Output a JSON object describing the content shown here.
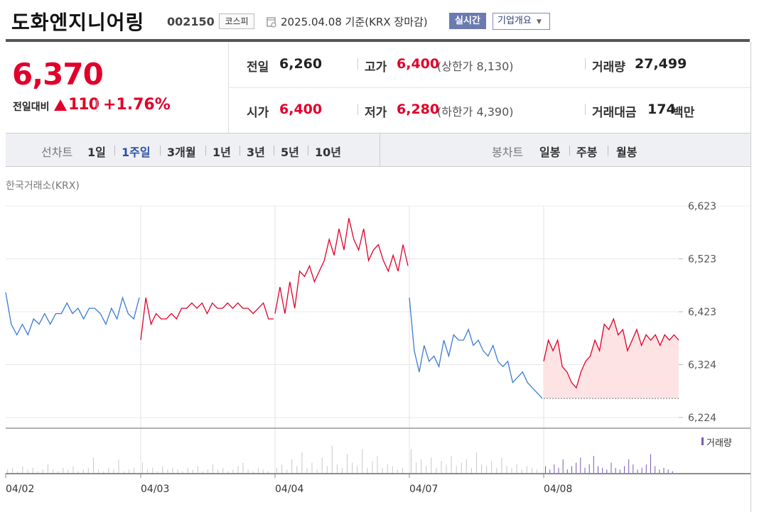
{
  "header": {
    "stock_name": "도화엔지니어링",
    "stock_code": "002150",
    "market": "코스피",
    "date_info": "2025.04.08  기준(KRX 장마감)",
    "realtime_label": "실시간",
    "company_overview_label": "기업개요"
  },
  "price": {
    "current": "6,370",
    "diff_label": "전일대비",
    "diff_value": "110",
    "diff_pct": "+1.76%",
    "prev_label": "전일",
    "prev_value": "6,260",
    "high_label": "고가",
    "high_value": "6,400",
    "upper_limit": "(상한가 8,130)",
    "volume_label": "거래량",
    "volume_value": "27,499",
    "open_label": "시가",
    "open_value": "6,400",
    "low_label": "저가",
    "low_value": "6,280",
    "lower_limit": "(하한가 4,390)",
    "amount_label": "거래대금",
    "amount_value": "174",
    "amount_unit": "백만"
  },
  "toolbar": {
    "line_chart_label": "선차트",
    "periods": [
      "1일",
      "1주일",
      "3개월",
      "1년",
      "3년",
      "5년",
      "10년"
    ],
    "selected_period": "1주일",
    "candle_label": "봉차트",
    "candle_periods": [
      "일봉",
      "주봉",
      "월봉"
    ]
  },
  "colors": {
    "up": "#e0002a",
    "down": "#3b7bd5",
    "volume": "#7a5ab5"
  },
  "chart_data": {
    "type": "line",
    "exchange": "한국거래소(KRX)",
    "y_ticks": [
      "6,623",
      "6,523",
      "6,423",
      "6,324",
      "6,224"
    ],
    "ylim": [
      6224,
      6623
    ],
    "x_labels": [
      "04/02",
      "04/03",
      "04/04",
      "04/07",
      "04/08"
    ],
    "volume_legend": "거래량",
    "baseline": 6260,
    "series": [
      {
        "day": "04/02",
        "trend": "down",
        "values": [
          6460,
          6400,
          6380,
          6400,
          6380,
          6410,
          6400,
          6420,
          6400,
          6420,
          6420,
          6440,
          6420,
          6430,
          6410,
          6430,
          6430,
          6420,
          6400,
          6430,
          6410,
          6450,
          6420,
          6410,
          6450
        ]
      },
      {
        "day": "04/03",
        "trend": "up",
        "values": [
          6370,
          6450,
          6400,
          6420,
          6410,
          6410,
          6420,
          6410,
          6430,
          6430,
          6440,
          6430,
          6440,
          6420,
          6440,
          6430,
          6430,
          6440,
          6430,
          6440,
          6430,
          6430,
          6420,
          6430,
          6440,
          6410,
          6410
        ]
      },
      {
        "day": "04/04",
        "trend": "up",
        "values": [
          6420,
          6470,
          6420,
          6480,
          6430,
          6500,
          6490,
          6510,
          6480,
          6500,
          6520,
          6560,
          6530,
          6580,
          6540,
          6600,
          6560,
          6540,
          6580,
          6520,
          6540,
          6550,
          6520,
          6500,
          6530,
          6500,
          6550,
          6510
        ]
      },
      {
        "day": "04/07",
        "trend": "down",
        "values": [
          6450,
          6350,
          6310,
          6360,
          6330,
          6340,
          6320,
          6370,
          6340,
          6380,
          6370,
          6370,
          6390,
          6360,
          6370,
          6350,
          6340,
          6360,
          6330,
          6320,
          6330,
          6290,
          6300,
          6310,
          6290,
          6280,
          6270,
          6260
        ]
      },
      {
        "day": "04/08",
        "trend": "up",
        "values": [
          6330,
          6370,
          6350,
          6370,
          6320,
          6310,
          6290,
          6280,
          6310,
          6330,
          6340,
          6370,
          6350,
          6400,
          6390,
          6410,
          6380,
          6390,
          6350,
          6370,
          6390,
          6360,
          6380,
          6370,
          6380,
          6360,
          6380,
          6370,
          6380,
          6370
        ]
      }
    ],
    "volume": [
      [
        2,
        3,
        1,
        4,
        2,
        3,
        1,
        2,
        5,
        2,
        1,
        3,
        2,
        4,
        1,
        2,
        3,
        9,
        2,
        1,
        3,
        2,
        8,
        1,
        2,
        3
      ],
      [
        6,
        2,
        3,
        1,
        4,
        2,
        3,
        2,
        1,
        3,
        2,
        4,
        1,
        2,
        5,
        2,
        3,
        1,
        2,
        4,
        6,
        2,
        1,
        3,
        2,
        1
      ],
      [
        3,
        5,
        2,
        8,
        4,
        12,
        3,
        6,
        2,
        9,
        4,
        16,
        5,
        3,
        11,
        6,
        4,
        14,
        3,
        7,
        10,
        3,
        5,
        4,
        2,
        3
      ],
      [
        14,
        6,
        8,
        4,
        9,
        3,
        7,
        5,
        10,
        4,
        6,
        8,
        3,
        12,
        5,
        4,
        7,
        3,
        9,
        4,
        3,
        5,
        2,
        4,
        3,
        2
      ],
      [
        4,
        2,
        5,
        3,
        8,
        2,
        4,
        6,
        9,
        3,
        5,
        10,
        4,
        3,
        2,
        6,
        3,
        2,
        4,
        8,
        5,
        2,
        3,
        5,
        11,
        4,
        2,
        3,
        2,
        1
      ]
    ]
  }
}
